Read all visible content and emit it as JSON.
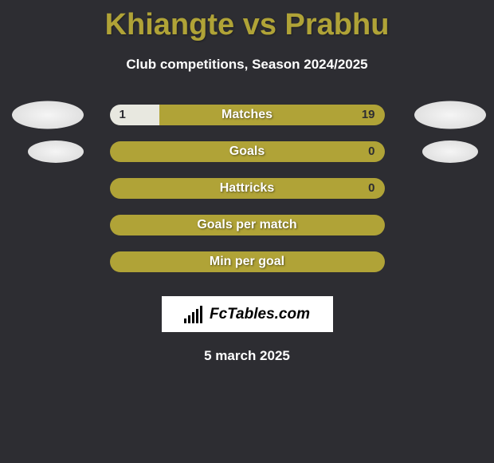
{
  "title": "Khiangte vs Prabhu",
  "subtitle": "Club competitions, Season 2024/2025",
  "date": "5 march 2025",
  "logo_text": "FcTables.com",
  "colors": {
    "background": "#2d2d32",
    "accent": "#b0a337",
    "bar_light": "#e8e8e0",
    "text_white": "#ffffff",
    "avatar_bg": "#f0f0f0"
  },
  "stats": [
    {
      "label": "Matches",
      "left_value": "1",
      "right_value": "19",
      "left_pct": 18,
      "show_avatars": true,
      "show_values": true
    },
    {
      "label": "Goals",
      "left_value": "",
      "right_value": "0",
      "left_pct": 0,
      "show_avatars": true,
      "show_values": true,
      "avatar_inset": true
    },
    {
      "label": "Hattricks",
      "left_value": "",
      "right_value": "0",
      "left_pct": 0,
      "show_avatars": false,
      "show_values": true
    },
    {
      "label": "Goals per match",
      "left_value": "",
      "right_value": "",
      "left_pct": 0,
      "show_avatars": false,
      "show_values": false
    },
    {
      "label": "Min per goal",
      "left_value": "",
      "right_value": "",
      "left_pct": 0,
      "show_avatars": false,
      "show_values": false
    }
  ]
}
